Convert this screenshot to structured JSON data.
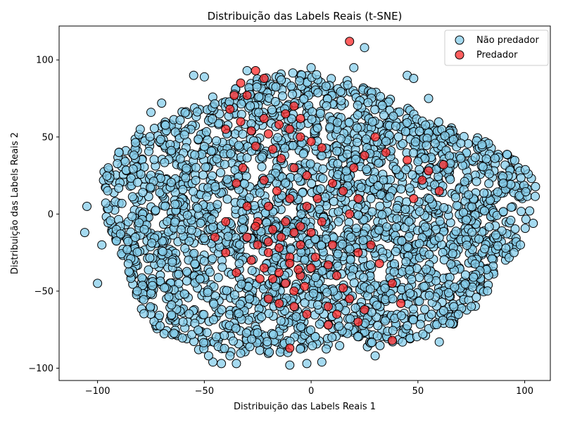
{
  "chart_data": {
    "type": "scatter",
    "title": "Distribuição das Labels Reais (t-SNE)",
    "xlabel": "Distribuição das Labels Reais  1",
    "ylabel": "Distribuição das Labels Reais  2",
    "xlim": [
      -118,
      112
    ],
    "ylim": [
      -108,
      122
    ],
    "xticks": [
      -100,
      -50,
      0,
      50,
      100
    ],
    "yticks": [
      -100,
      -50,
      0,
      50,
      100
    ],
    "grid": false,
    "legend_position": "top-right",
    "series": [
      {
        "name": "Não predador",
        "color": "#87ceeb",
        "cloud": {
          "center": [
            0,
            -3
          ],
          "radii": [
            100,
            90
          ],
          "count": 2600
        },
        "points": [
          [
            -106,
            -12
          ],
          [
            -105,
            5
          ],
          [
            -100,
            -45
          ],
          [
            -55,
            90
          ],
          [
            -50,
            89
          ],
          [
            -75,
            66
          ],
          [
            -70,
            72
          ],
          [
            -46,
            -96
          ],
          [
            -42,
            -97
          ],
          [
            -38,
            -92
          ],
          [
            -48,
            -92
          ],
          [
            -35,
            -97
          ],
          [
            25,
            108
          ],
          [
            45,
            90
          ],
          [
            48,
            88
          ],
          [
            60,
            -83
          ],
          [
            65,
            -71
          ],
          [
            75,
            -60
          ],
          [
            104,
            -6
          ],
          [
            98,
            -20
          ],
          [
            -30,
            93
          ],
          [
            0,
            95
          ],
          [
            -95,
            30
          ],
          [
            -90,
            40
          ],
          [
            90,
            20
          ],
          [
            80,
            45
          ],
          [
            -10,
            -98
          ],
          [
            5,
            -96
          ],
          [
            30,
            -92
          ],
          [
            -60,
            -70
          ],
          [
            -2,
            -97
          ],
          [
            20,
            95
          ],
          [
            55,
            75
          ],
          [
            -80,
            55
          ],
          [
            95,
            -25
          ],
          [
            -98,
            -20
          ]
        ]
      },
      {
        "name": "Predador",
        "color": "#ff2a2a",
        "points": [
          [
            18,
            112
          ],
          [
            -26,
            93
          ],
          [
            -22,
            88
          ],
          [
            -33,
            85
          ],
          [
            -36,
            77
          ],
          [
            -30,
            77
          ],
          [
            -38,
            68
          ],
          [
            -33,
            60
          ],
          [
            -40,
            55
          ],
          [
            -28,
            54
          ],
          [
            -22,
            62
          ],
          [
            -15,
            58
          ],
          [
            -20,
            52
          ],
          [
            -26,
            44
          ],
          [
            -18,
            42
          ],
          [
            -10,
            55
          ],
          [
            -5,
            50
          ],
          [
            0,
            47
          ],
          [
            5,
            43
          ],
          [
            -14,
            36
          ],
          [
            -8,
            30
          ],
          [
            -2,
            25
          ],
          [
            -22,
            22
          ],
          [
            -16,
            15
          ],
          [
            -10,
            10
          ],
          [
            -20,
            5
          ],
          [
            -25,
            -5
          ],
          [
            -18,
            -10
          ],
          [
            -12,
            -5
          ],
          [
            -5,
            -8
          ],
          [
            0,
            -12
          ],
          [
            5,
            -5
          ],
          [
            -30,
            -15
          ],
          [
            -25,
            -20
          ],
          [
            -20,
            -25
          ],
          [
            -15,
            -22
          ],
          [
            -10,
            -28
          ],
          [
            -5,
            -20
          ],
          [
            -28,
            -30
          ],
          [
            -22,
            -35
          ],
          [
            -15,
            -38
          ],
          [
            -10,
            -32
          ],
          [
            -5,
            -40
          ],
          [
            0,
            -35
          ],
          [
            -18,
            -42
          ],
          [
            -12,
            -45
          ],
          [
            -8,
            -50
          ],
          [
            -3,
            -47
          ],
          [
            -20,
            -55
          ],
          [
            -15,
            -58
          ],
          [
            -8,
            -60
          ],
          [
            2,
            -28
          ],
          [
            8,
            -33
          ],
          [
            12,
            -40
          ],
          [
            15,
            -48
          ],
          [
            18,
            -55
          ],
          [
            22,
            -25
          ],
          [
            28,
            -20
          ],
          [
            32,
            -32
          ],
          [
            38,
            -45
          ],
          [
            42,
            -58
          ],
          [
            30,
            50
          ],
          [
            35,
            40
          ],
          [
            45,
            35
          ],
          [
            55,
            28
          ],
          [
            62,
            32
          ],
          [
            52,
            22
          ],
          [
            60,
            15
          ],
          [
            48,
            10
          ],
          [
            38,
            -82
          ],
          [
            8,
            -72
          ],
          [
            -10,
            -87
          ],
          [
            25,
            -62
          ],
          [
            22,
            -70
          ],
          [
            -35,
            -38
          ],
          [
            -45,
            -15
          ],
          [
            -40,
            -5
          ],
          [
            10,
            20
          ],
          [
            15,
            15
          ],
          [
            20,
            30
          ],
          [
            25,
            38
          ],
          [
            8,
            -60
          ],
          [
            12,
            -65
          ],
          [
            -2,
            -65
          ],
          [
            -30,
            5
          ],
          [
            -35,
            20
          ],
          [
            -32,
            30
          ],
          [
            -12,
            65
          ],
          [
            -8,
            70
          ],
          [
            -40,
            -25
          ],
          [
            -2,
            5
          ],
          [
            3,
            10
          ],
          [
            10,
            -20
          ],
          [
            18,
            0
          ],
          [
            22,
            10
          ],
          [
            -5,
            62
          ],
          [
            -26,
            -8
          ],
          [
            -14,
            -15
          ],
          [
            -20,
            -18
          ],
          [
            -8,
            -12
          ],
          [
            -24,
            -42
          ],
          [
            -6,
            -36
          ]
        ]
      }
    ]
  }
}
